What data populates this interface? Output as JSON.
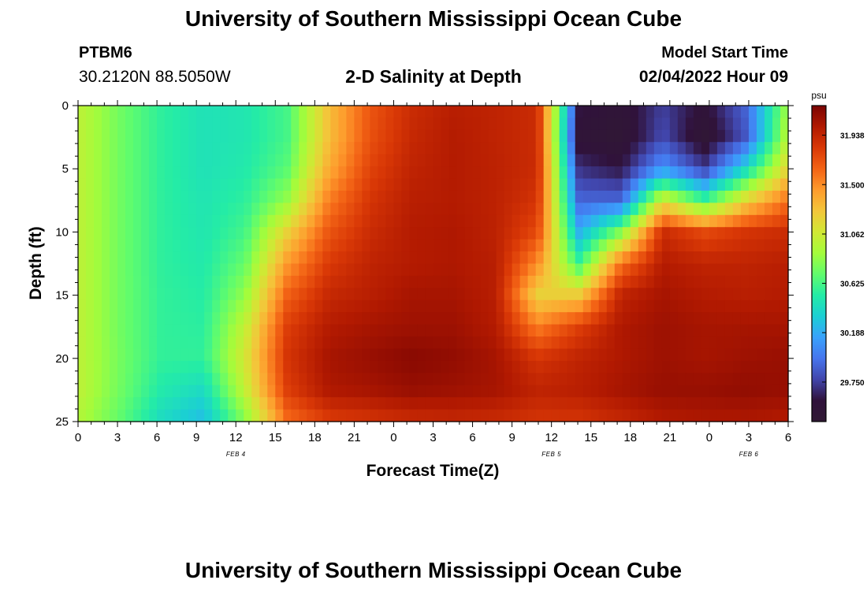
{
  "header": {
    "title": "University of Southern Mississippi Ocean Cube",
    "station_id": "PTBM6",
    "station_coords": "30.2120N  88.5050W",
    "chart_title": "2-D Salinity at Depth",
    "model_start_label": "Model Start Time",
    "model_start_value": "02/04/2022 Hour 09"
  },
  "footer": {
    "title": "University of Southern Mississippi Ocean Cube"
  },
  "chart_data": {
    "type": "heatmap",
    "title": "2-D Salinity at Depth",
    "xlabel": "Forecast Time(Z)",
    "ylabel": "Depth (ft)",
    "x_range_hours": [
      0,
      54
    ],
    "x_ticks": [
      {
        "h": 0,
        "label": "0"
      },
      {
        "h": 3,
        "label": "3"
      },
      {
        "h": 6,
        "label": "6"
      },
      {
        "h": 9,
        "label": "9"
      },
      {
        "h": 12,
        "label": "12"
      },
      {
        "h": 15,
        "label": "15"
      },
      {
        "h": 18,
        "label": "18"
      },
      {
        "h": 21,
        "label": "21"
      },
      {
        "h": 24,
        "label": "0"
      },
      {
        "h": 27,
        "label": "3"
      },
      {
        "h": 30,
        "label": "6"
      },
      {
        "h": 33,
        "label": "9"
      },
      {
        "h": 36,
        "label": "12"
      },
      {
        "h": 39,
        "label": "15"
      },
      {
        "h": 42,
        "label": "18"
      },
      {
        "h": 45,
        "label": "21"
      },
      {
        "h": 48,
        "label": "0"
      },
      {
        "h": 51,
        "label": "3"
      },
      {
        "h": 54,
        "label": "6"
      }
    ],
    "date_labels": [
      {
        "h": 12,
        "label": "FEB 4"
      },
      {
        "h": 36,
        "label": "FEB 5"
      },
      {
        "h": 51,
        "label": "FEB 6"
      }
    ],
    "y_range": [
      0,
      25
    ],
    "y_ticks": [
      0,
      5,
      10,
      15,
      20,
      25
    ],
    "colorbar": {
      "unit": "psu",
      "range": [
        29.4,
        32.2
      ],
      "tick_labels": [
        "31.938",
        "31.500",
        "31.062",
        "30.625",
        "30.188",
        "29.750"
      ],
      "stops": [
        "#301934",
        "#30123b",
        "#4145ab",
        "#4675ed",
        "#39a2fc",
        "#1bcfd4",
        "#24eca6",
        "#61fc6c",
        "#a4fc3b",
        "#d1e834",
        "#f3c63a",
        "#fe9b2d",
        "#f36315",
        "#d93806",
        "#b11901",
        "#7a0403"
      ]
    },
    "grid_cols": 18,
    "grid_rows": 11,
    "values": [
      [
        31.0,
        30.75,
        30.55,
        30.45,
        30.48,
        30.62,
        31.3,
        31.7,
        31.9,
        31.98,
        31.95,
        31.9,
        29.6,
        29.5,
        29.75,
        29.55,
        29.9,
        30.9
      ],
      [
        31.0,
        30.75,
        30.55,
        30.45,
        30.48,
        30.62,
        31.3,
        31.72,
        31.92,
        32.0,
        31.95,
        31.9,
        29.5,
        29.45,
        29.8,
        29.45,
        29.85,
        31.0
      ],
      [
        31.0,
        30.75,
        30.55,
        30.45,
        30.5,
        30.68,
        31.38,
        31.78,
        31.95,
        32.0,
        31.96,
        31.9,
        29.7,
        29.6,
        30.1,
        29.75,
        30.4,
        31.2
      ],
      [
        31.0,
        30.75,
        30.55,
        30.47,
        30.55,
        30.85,
        31.55,
        31.85,
        31.98,
        32.0,
        31.96,
        31.85,
        29.9,
        29.9,
        31.1,
        30.6,
        31.2,
        31.6
      ],
      [
        31.0,
        30.75,
        30.55,
        30.48,
        30.62,
        31.2,
        31.7,
        31.9,
        32.0,
        32.02,
        31.96,
        31.75,
        30.2,
        30.8,
        31.9,
        31.75,
        31.85,
        31.9
      ],
      [
        31.0,
        30.75,
        30.55,
        30.5,
        30.72,
        31.45,
        31.82,
        31.95,
        32.0,
        32.02,
        31.98,
        31.5,
        30.6,
        31.6,
        32.0,
        31.95,
        31.95,
        31.98
      ],
      [
        31.0,
        30.75,
        30.56,
        30.52,
        30.85,
        31.65,
        31.92,
        31.98,
        32.05,
        32.05,
        31.98,
        31.2,
        31.25,
        31.95,
        32.05,
        32.0,
        31.98,
        32.0
      ],
      [
        31.0,
        30.75,
        30.56,
        30.54,
        31.02,
        31.8,
        32.0,
        32.05,
        32.08,
        32.08,
        32.0,
        31.55,
        31.8,
        32.02,
        32.08,
        32.05,
        32.05,
        32.05
      ],
      [
        31.0,
        30.76,
        30.56,
        30.56,
        31.1,
        31.85,
        32.05,
        32.1,
        32.15,
        32.12,
        32.05,
        31.85,
        31.95,
        32.02,
        32.08,
        32.05,
        32.08,
        32.1
      ],
      [
        31.0,
        30.75,
        30.5,
        30.4,
        31.02,
        31.8,
        32.02,
        32.05,
        32.1,
        32.08,
        32.05,
        31.95,
        31.98,
        32.05,
        32.1,
        32.1,
        32.12,
        32.1
      ],
      [
        30.95,
        30.7,
        30.4,
        30.25,
        30.8,
        31.6,
        31.8,
        31.85,
        31.9,
        31.92,
        31.9,
        31.85,
        31.85,
        31.92,
        32.0,
        32.02,
        32.02,
        32.0
      ]
    ]
  }
}
